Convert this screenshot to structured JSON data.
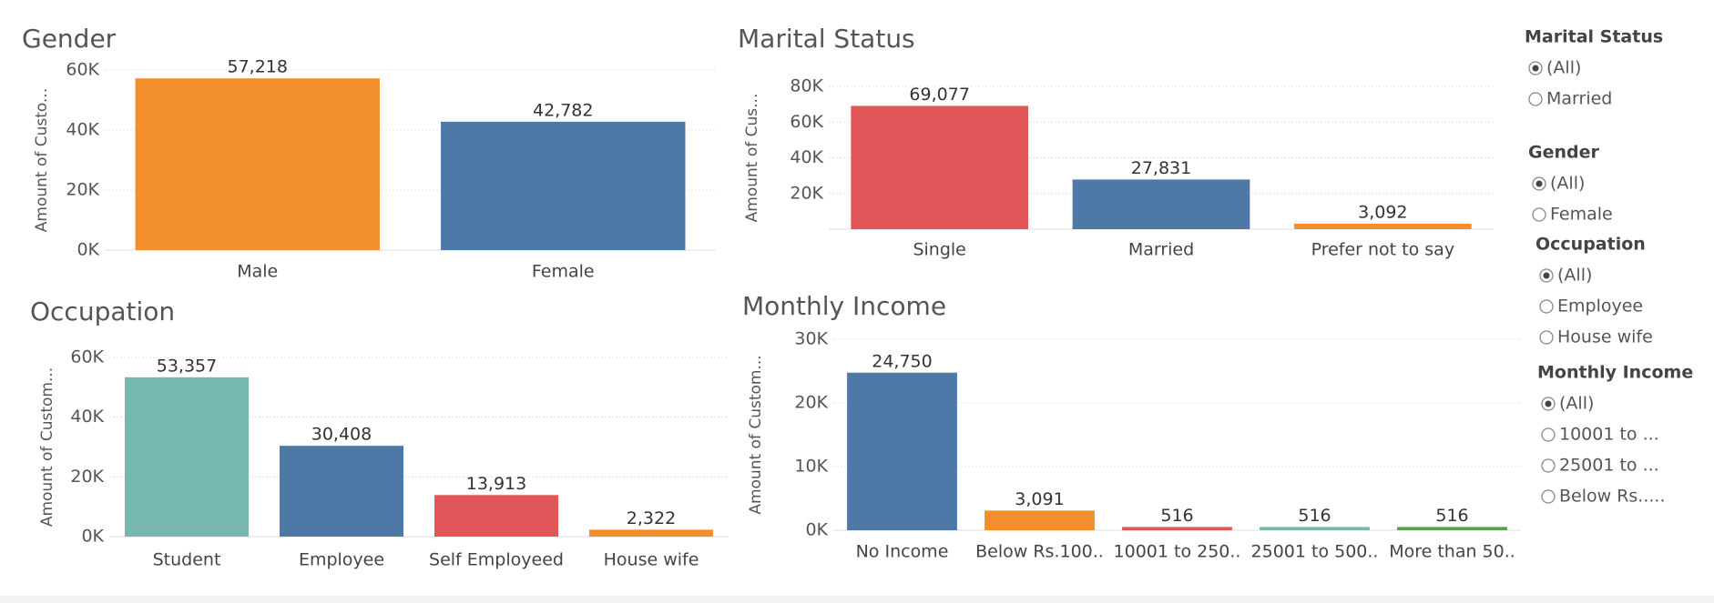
{
  "chart_data": [
    {
      "type": "bar",
      "title": "Gender",
      "y_label": "Amount of Custo...",
      "categories": [
        "Male",
        "Female"
      ],
      "values": [
        57218,
        42782
      ],
      "value_labels": [
        "57,218",
        "42,782"
      ],
      "colors": [
        "#f28e2b",
        "#4e79a7"
      ],
      "ylim": [
        0,
        60000
      ],
      "yticks": [
        {
          "value": 0,
          "label": "0K"
        },
        {
          "value": 20000,
          "label": "20K"
        },
        {
          "value": 40000,
          "label": "40K"
        },
        {
          "value": 60000,
          "label": "60K"
        }
      ],
      "grid": true
    },
    {
      "type": "bar",
      "title": "Marital Status",
      "y_label": "Amount of Cus...",
      "categories": [
        "Single",
        "Married",
        "Prefer not to say"
      ],
      "values": [
        69077,
        27831,
        3092
      ],
      "value_labels": [
        "69,077",
        "27,831",
        "3,092"
      ],
      "colors": [
        "#e15759",
        "#4e79a7",
        "#f28e2b"
      ],
      "ylim": [
        0,
        80000
      ],
      "yticks": [
        {
          "value": 20000,
          "label": "20K"
        },
        {
          "value": 40000,
          "label": "40K"
        },
        {
          "value": 60000,
          "label": "60K"
        },
        {
          "value": 80000,
          "label": "80K"
        }
      ],
      "grid": true
    },
    {
      "type": "bar",
      "title": "Occupation",
      "y_label": "Amount of Custom...",
      "categories": [
        "Student",
        "Employee",
        "Self Employeed",
        "House wife"
      ],
      "values": [
        53357,
        30408,
        13913,
        2322
      ],
      "value_labels": [
        "53,357",
        "30,408",
        "13,913",
        "2,322"
      ],
      "colors": [
        "#76b7b2",
        "#4e79a7",
        "#e15759",
        "#f28e2b"
      ],
      "ylim": [
        0,
        60000
      ],
      "yticks": [
        {
          "value": 0,
          "label": "0K"
        },
        {
          "value": 20000,
          "label": "20K"
        },
        {
          "value": 40000,
          "label": "40K"
        },
        {
          "value": 60000,
          "label": "60K"
        }
      ],
      "grid": true
    },
    {
      "type": "bar",
      "title": "Monthly Income",
      "y_label": "Amount of Custom...",
      "categories": [
        "No Income",
        "Below Rs.100..",
        "10001 to 250..",
        "25001 to 500..",
        "More than 50.."
      ],
      "values": [
        24750,
        3091,
        516,
        516,
        516
      ],
      "value_labels": [
        "24,750",
        "3,091",
        "516",
        "516",
        "516"
      ],
      "colors": [
        "#4e79a7",
        "#f28e2b",
        "#e15759",
        "#76b7b2",
        "#59a14f"
      ],
      "ylim": [
        0,
        30000
      ],
      "yticks": [
        {
          "value": 0,
          "label": "0K"
        },
        {
          "value": 10000,
          "label": "10K"
        },
        {
          "value": 20000,
          "label": "20K"
        },
        {
          "value": 30000,
          "label": "30K"
        }
      ],
      "grid": true
    }
  ],
  "filters": [
    {
      "title": "Marital Status",
      "options": [
        "(All)",
        "Married"
      ]
    },
    {
      "title": "Gender",
      "options": [
        "(All)",
        "Female"
      ]
    },
    {
      "title": "Occupation",
      "options": [
        "(All)",
        "Employee",
        "House wife"
      ]
    },
    {
      "title": "Monthly Income",
      "options": [
        "(All)",
        "10001 to ...",
        "25001 to ...",
        "Below Rs....."
      ]
    }
  ]
}
